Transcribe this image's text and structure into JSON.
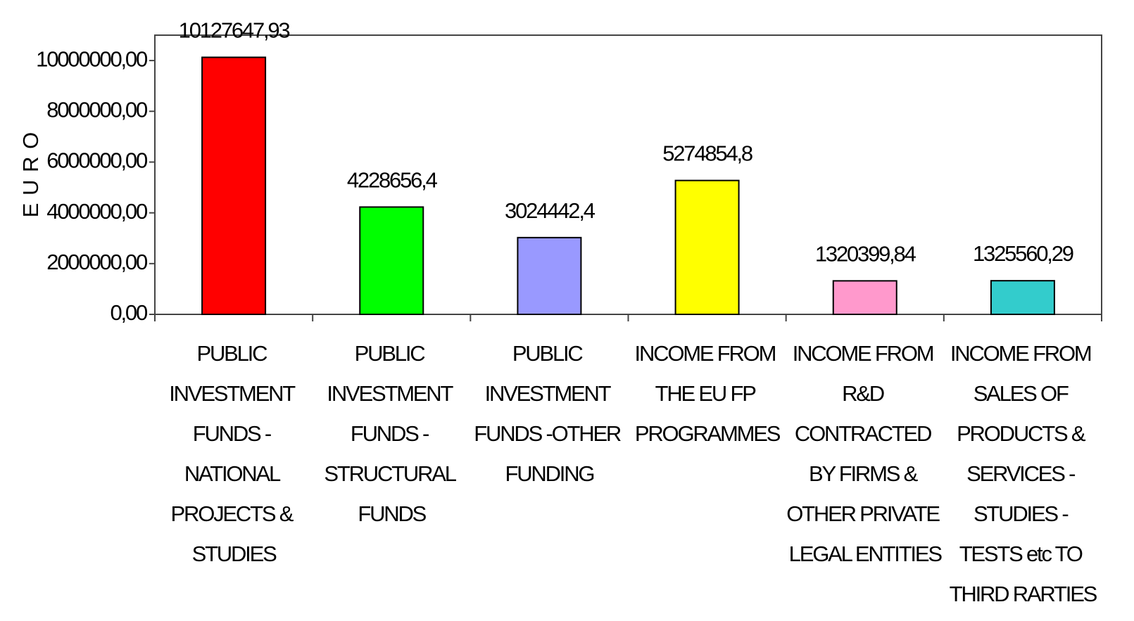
{
  "chart_data": {
    "type": "bar",
    "y_label": "E U R O",
    "categories": [
      "PUBLIC INVESTMENT FUNDS - NATIONAL PROJECTS & STUDIES",
      "PUBLIC INVESTMENT FUNDS - STRUCTURAL FUNDS",
      "PUBLIC INVESTMENT FUNDS -OTHER FUNDING",
      "INCOME FROM THE EU FP PROGRAMMES",
      "INCOME FROM R&D CONTRACTED BY FIRMS & OTHER PRIVATE LEGAL ENTITIES",
      "INCOME FROM SALES OF PRODUCTS & SERVICES - STUDIES - TESTS etc TO THIRD RARTIES"
    ],
    "values": [
      10127647.93,
      4228656.4,
      3024442.4,
      5274854.8,
      1320399.84,
      1325560.29
    ],
    "value_labels": [
      "10127647,93",
      "4228656,4",
      "3024442,4",
      "5274854,8",
      "1320399,84",
      "1325560,29"
    ],
    "colors": [
      "#ff0000",
      "#00ff00",
      "#9999ff",
      "#ffff00",
      "#ff99cc",
      "#33cccc"
    ],
    "ylim": [
      0,
      11000000
    ],
    "yticks": [
      {
        "value": 0,
        "label": "0,00"
      },
      {
        "value": 2000000,
        "label": "2000000,00"
      },
      {
        "value": 4000000,
        "label": "4000000,00"
      },
      {
        "value": 6000000,
        "label": "6000000,00"
      },
      {
        "value": 8000000,
        "label": "8000000,00"
      },
      {
        "value": 10000000,
        "label": "10000000,00"
      }
    ],
    "grid": false
  }
}
